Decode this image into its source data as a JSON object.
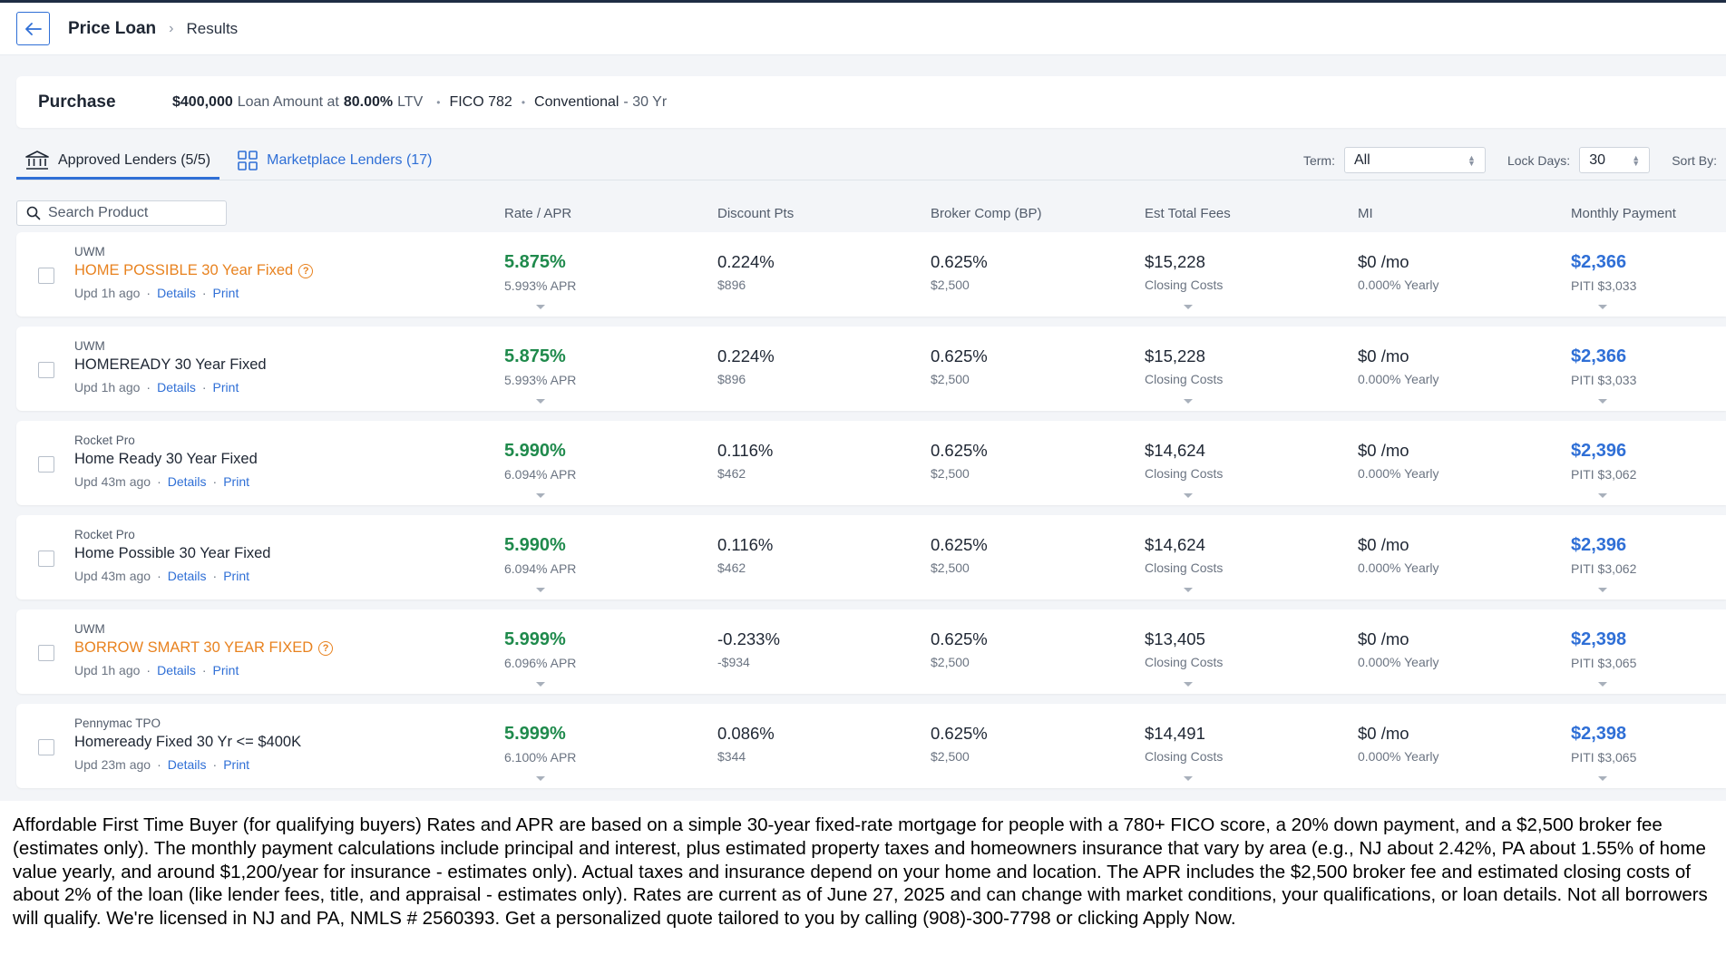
{
  "header": {
    "title": "Price Loan",
    "current": "Results"
  },
  "summary": {
    "purpose": "Purchase",
    "loan_amount": "$400,000",
    "loan_amount_label": "Loan Amount at",
    "ltv": "80.00%",
    "ltv_label": "LTV",
    "fico": "FICO 782",
    "program": "Conventional",
    "term": "- 30 Yr"
  },
  "tabs": {
    "approved": "Approved Lenders (5/5)",
    "marketplace": "Marketplace Lenders (17)"
  },
  "filters": {
    "term_label": "Term:",
    "term_value": "All",
    "lock_label": "Lock Days:",
    "lock_value": "30",
    "sort_label": "Sort By:"
  },
  "search": {
    "placeholder": "Search Product"
  },
  "columns": {
    "rate": "Rate / APR",
    "discount": "Discount Pts",
    "broker": "Broker Comp (BP)",
    "fees": "Est Total Fees",
    "mi": "MI",
    "payment": "Monthly Payment"
  },
  "rows": [
    {
      "lender": "UWM",
      "product": "HOME POSSIBLE 30 Year Fixed",
      "highlight": true,
      "updated": "Upd 1h ago",
      "details": "Details",
      "print": "Print",
      "rate": "5.875%",
      "apr": "5.993% APR",
      "discount": "0.224%",
      "discount_amt": "$896",
      "broker": "0.625%",
      "broker_amt": "$2,500",
      "fees": "$15,228",
      "fees_label": "Closing Costs",
      "mi": "$0 /mo",
      "mi_yearly": "0.000% Yearly",
      "payment": "$2,366",
      "piti": "PITI $3,033"
    },
    {
      "lender": "UWM",
      "product": "HOMEREADY 30 Year Fixed",
      "highlight": false,
      "updated": "Upd 1h ago",
      "details": "Details",
      "print": "Print",
      "rate": "5.875%",
      "apr": "5.993% APR",
      "discount": "0.224%",
      "discount_amt": "$896",
      "broker": "0.625%",
      "broker_amt": "$2,500",
      "fees": "$15,228",
      "fees_label": "Closing Costs",
      "mi": "$0 /mo",
      "mi_yearly": "0.000% Yearly",
      "payment": "$2,366",
      "piti": "PITI $3,033"
    },
    {
      "lender": "Rocket Pro",
      "product": "Home Ready 30 Year Fixed",
      "highlight": false,
      "updated": "Upd 43m ago",
      "details": "Details",
      "print": "Print",
      "rate": "5.990%",
      "apr": "6.094% APR",
      "discount": "0.116%",
      "discount_amt": "$462",
      "broker": "0.625%",
      "broker_amt": "$2,500",
      "fees": "$14,624",
      "fees_label": "Closing Costs",
      "mi": "$0 /mo",
      "mi_yearly": "0.000% Yearly",
      "payment": "$2,396",
      "piti": "PITI $3,062"
    },
    {
      "lender": "Rocket Pro",
      "product": "Home Possible 30 Year Fixed",
      "highlight": false,
      "updated": "Upd 43m ago",
      "details": "Details",
      "print": "Print",
      "rate": "5.990%",
      "apr": "6.094% APR",
      "discount": "0.116%",
      "discount_amt": "$462",
      "broker": "0.625%",
      "broker_amt": "$2,500",
      "fees": "$14,624",
      "fees_label": "Closing Costs",
      "mi": "$0 /mo",
      "mi_yearly": "0.000% Yearly",
      "payment": "$2,396",
      "piti": "PITI $3,062"
    },
    {
      "lender": "UWM",
      "product": "BORROW SMART 30 YEAR FIXED",
      "highlight": true,
      "updated": "Upd 1h ago",
      "details": "Details",
      "print": "Print",
      "rate": "5.999%",
      "apr": "6.096% APR",
      "discount": "-0.233%",
      "discount_amt": "-$934",
      "broker": "0.625%",
      "broker_amt": "$2,500",
      "fees": "$13,405",
      "fees_label": "Closing Costs",
      "mi": "$0 /mo",
      "mi_yearly": "0.000% Yearly",
      "payment": "$2,398",
      "piti": "PITI $3,065"
    },
    {
      "lender": "Pennymac TPO",
      "product": "Homeready Fixed 30 Yr <= $400K",
      "highlight": false,
      "updated": "Upd 23m ago",
      "details": "Details",
      "print": "Print",
      "rate": "5.999%",
      "apr": "6.100% APR",
      "discount": "0.086%",
      "discount_amt": "$344",
      "broker": "0.625%",
      "broker_amt": "$2,500",
      "fees": "$14,491",
      "fees_label": "Closing Costs",
      "mi": "$0 /mo",
      "mi_yearly": "0.000% Yearly",
      "payment": "$2,398",
      "piti": "PITI $3,065"
    }
  ],
  "disclaimer": "Affordable First Time Buyer (for qualifying buyers) Rates and APR are based on a simple 30-year fixed-rate mortgage for people with a 780+ FICO score, a 20% down payment, and a $2,500 broker fee (estimates only). The monthly payment calculations include principal and interest, plus estimated property taxes and homeowners insurance that vary by area (e.g., NJ about 2.42%, PA about 1.55% of home value yearly, and around $1,200/year for insurance - estimates only). Actual taxes and insurance depend on your home and location. The APR includes the $2,500 broker fee and estimated closing costs of about 2% of the loan (like lender fees, title, and appraisal - estimates only). Rates are current as of June 27, 2025 and can change with market conditions, your qualifications, or loan details. Not all borrowers will qualify. We're licensed in NJ and PA, NMLS # 2560393. Get a personalized quote tailored to you by calling (908)-300-7798 or clicking Apply Now.",
  "colors": {
    "accent": "#2f6fd6",
    "rate_green": "#1f8a4c",
    "highlight_orange": "#e8821f"
  }
}
